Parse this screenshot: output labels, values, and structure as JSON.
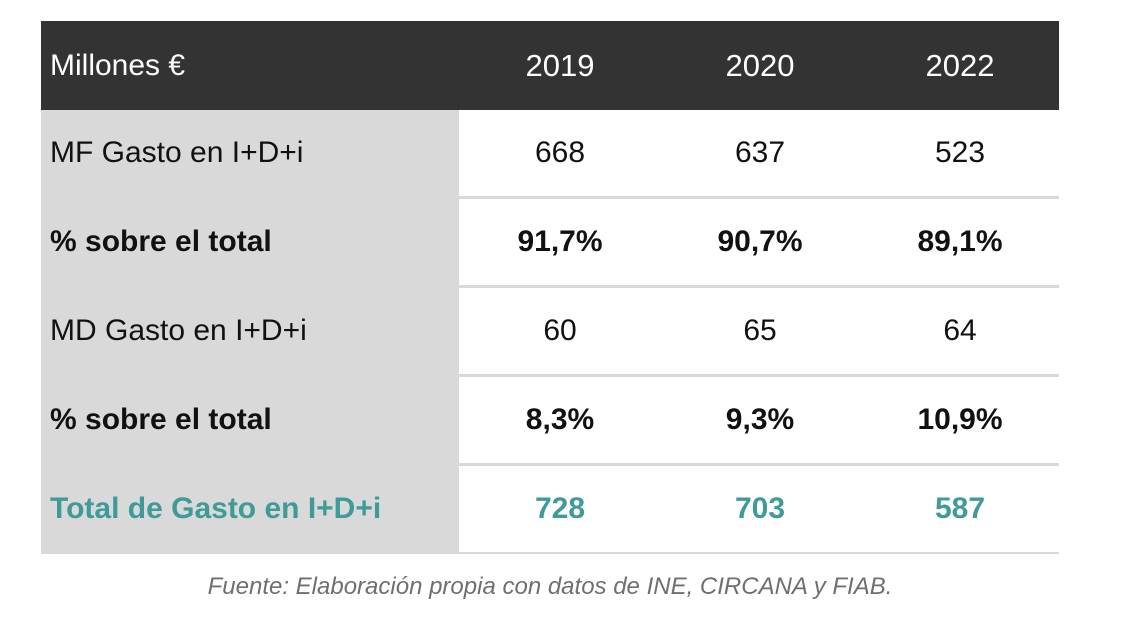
{
  "table": {
    "header": {
      "label": "Millones €",
      "years": [
        "2019",
        "2020",
        "2022"
      ]
    },
    "rows": [
      {
        "label": "MF Gasto en I+D+i",
        "values": [
          "668",
          "637",
          "523"
        ]
      },
      {
        "label": "% sobre el total",
        "values": [
          "91,7%",
          "90,7%",
          "89,1%"
        ]
      },
      {
        "label": "MD Gasto en I+D+i",
        "values": [
          "60",
          "65",
          "64"
        ]
      },
      {
        "label": "% sobre el total",
        "values": [
          "8,3%",
          "9,3%",
          "10,9%"
        ]
      },
      {
        "label": "Total de Gasto en I+D+i",
        "values": [
          "728",
          "703",
          "587"
        ]
      }
    ]
  },
  "source": {
    "prefix": "Fuente:",
    "text": " Elaboración propia con datos de INE, CIRCANA y FIAB."
  },
  "colors": {
    "header_bg": "#333333",
    "label_bg": "#d9d9d9",
    "total_text": "#3f9b97"
  }
}
